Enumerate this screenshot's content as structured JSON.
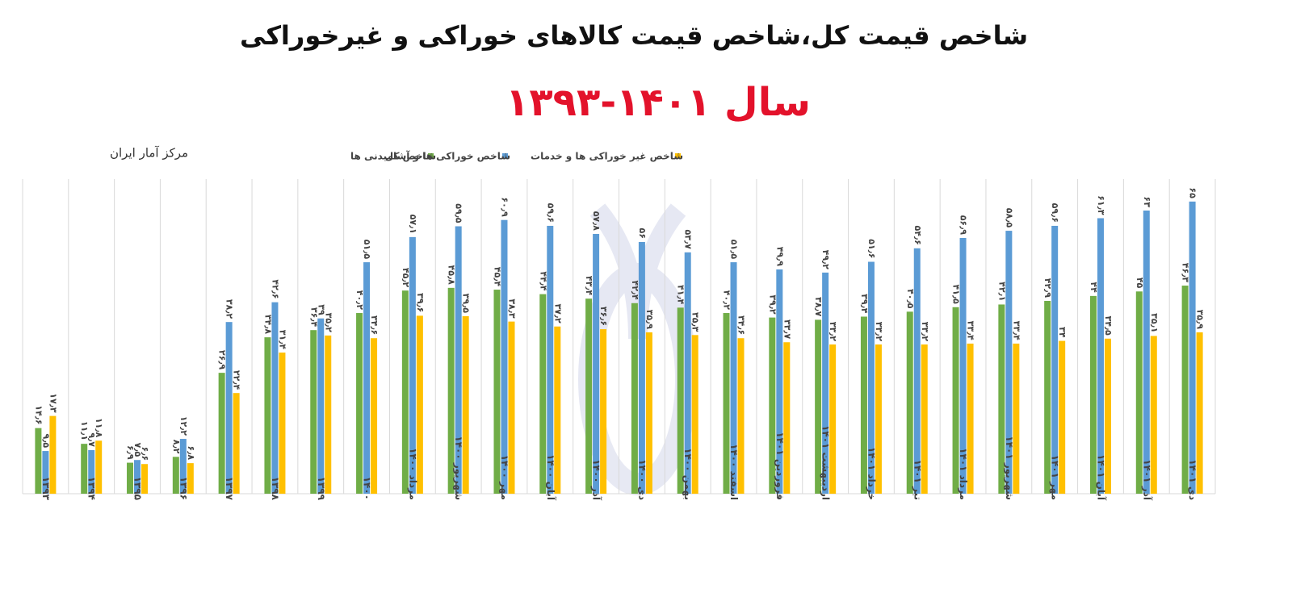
{
  "chart_data": {
    "type": "bar",
    "title": "شاخص قیمت کل،شاخص قیمت کالاهای خوراکی و غیرخوراکی",
    "subtitle": "سال ۱۴۰۱-۱۳۹۳",
    "source": "مرکز آمار ایران",
    "categories": [
      "۱۳۹۳",
      "۱۳۹۴",
      "۱۳۹۵",
      "۱۳۹۶",
      "۱۳۹۷",
      "۱۳۹۸",
      "۱۳۹۹",
      "۱۴۰۰",
      "مرداد ۱۴۰۰",
      "شهریور ۱۴۰۰",
      "مهر ۱۴۰۰",
      "آبان ۱۴۰۰",
      "آذر ۱۴۰۰",
      "دی ۱۴۰۰",
      "بهمن ۱۴۰۰",
      "اسفند ۱۴۰۰",
      "فروردین ۱۴۰۱",
      "اردیبهشت ۱۴۰۱",
      "خرداد ۱۴۰۱",
      "تیر ۱۴۰۱",
      "مرداد ۱۴۰۱",
      "شهریور ۱۴۰۱",
      "مهر ۱۴۰۱",
      "آبان ۱۴۰۱",
      "آذر ۱۴۰۱",
      "دی ۱۴۰۱"
    ],
    "series": [
      {
        "name": "شاخص کل",
        "color": "#70ad47",
        "values": [
          14.6,
          11.1,
          6.9,
          8.2,
          26.9,
          34.8,
          36.4,
          40.2,
          45.2,
          45.8,
          45.4,
          44.4,
          43.4,
          42.4,
          41.4,
          40.2,
          39.2,
          38.7,
          39.4,
          40.5,
          41.5,
          42.1,
          42.9,
          44,
          45,
          46.3
        ],
        "value_labels": [
          "۱۴٫۶",
          "۱۱٫۱",
          "۶٫۹",
          "۸٫۲",
          "۲۶٫۹",
          "۳۴٫۸",
          "۳۶٫۴",
          "۴۰٫۲",
          "۴۵٫۲",
          "۴۵٫۸",
          "۴۵٫۴",
          "۴۴٫۴",
          "۴۳٫۴",
          "۴۲٫۴",
          "۴۱٫۴",
          "۴۰٫۲",
          "۳۹٫۲",
          "۳۸٫۷",
          "۳۹٫۴",
          "۴۰٫۵",
          "۴۱٫۵",
          "۴۲٫۱",
          "۴۲٫۹",
          "۴۴",
          "۴۵",
          "۴۶٫۳"
        ]
      },
      {
        "name": "شاخص خوراکی ها و آشامیدنی ها",
        "color": "#5b9bd5",
        "values": [
          9.5,
          9.7,
          7.5,
          12.2,
          38.2,
          42.6,
          39,
          51.5,
          57.1,
          59.5,
          60.9,
          59.6,
          57.8,
          56,
          53.7,
          51.5,
          49.9,
          49.2,
          51.6,
          54.6,
          56.9,
          58.5,
          59.6,
          61.3,
          63,
          65
        ],
        "value_labels": [
          "۹٫۵",
          "۹٫۷",
          "۷٫۵",
          "۱۲٫۲",
          "۳۸٫۲",
          "۴۲٫۶",
          "۳۹",
          "۵۱٫۵",
          "۵۷٫۱",
          "۵۹٫۵",
          "۶۰٫۹",
          "۵۹٫۶",
          "۵۷٫۸",
          "۵۶",
          "۵۳٫۷",
          "۵۱٫۵",
          "۴۹٫۹",
          "۴۹٫۲",
          "۵۱٫۶",
          "۵۴٫۶",
          "۵۶٫۹",
          "۵۸٫۵",
          "۵۹٫۶",
          "۶۱٫۳",
          "۶۳",
          "۶۵"
        ]
      },
      {
        "name": "شاخص غیر خوراکی ها و خدمات",
        "color": "#ffc000",
        "values": [
          17.3,
          11.8,
          6.6,
          6.8,
          22.4,
          31.4,
          35.2,
          34.6,
          39.6,
          39.5,
          38.3,
          37.2,
          36.6,
          35.9,
          35.3,
          34.6,
          33.7,
          33.2,
          33.2,
          33.2,
          33.4,
          33.4,
          34,
          34.5,
          35.1,
          35.9
        ],
        "value_labels": [
          "۱۷٫۳",
          "۱۱٫۸",
          "۶٫۶",
          "۶٫۸",
          "۲۲٫۴",
          "۳۱٫۴",
          "۳۵٫۲",
          "۳۴٫۶",
          "۳۹٫۶",
          "۳۹٫۵",
          "۳۸٫۳",
          "۳۷٫۲",
          "۳۶٫۶",
          "۳۵٫۹",
          "۳۵٫۳",
          "۳۴٫۶",
          "۳۳٫۷",
          "۳۳٫۲",
          "۳۳٫۲",
          "۳۳٫۲",
          "۳۳٫۴",
          "۳۳٫۴",
          "۳۴",
          "۳۴٫۵",
          "۳۵٫۱",
          "۳۵٫۹"
        ]
      }
    ],
    "ylim": [
      0,
      70
    ]
  }
}
